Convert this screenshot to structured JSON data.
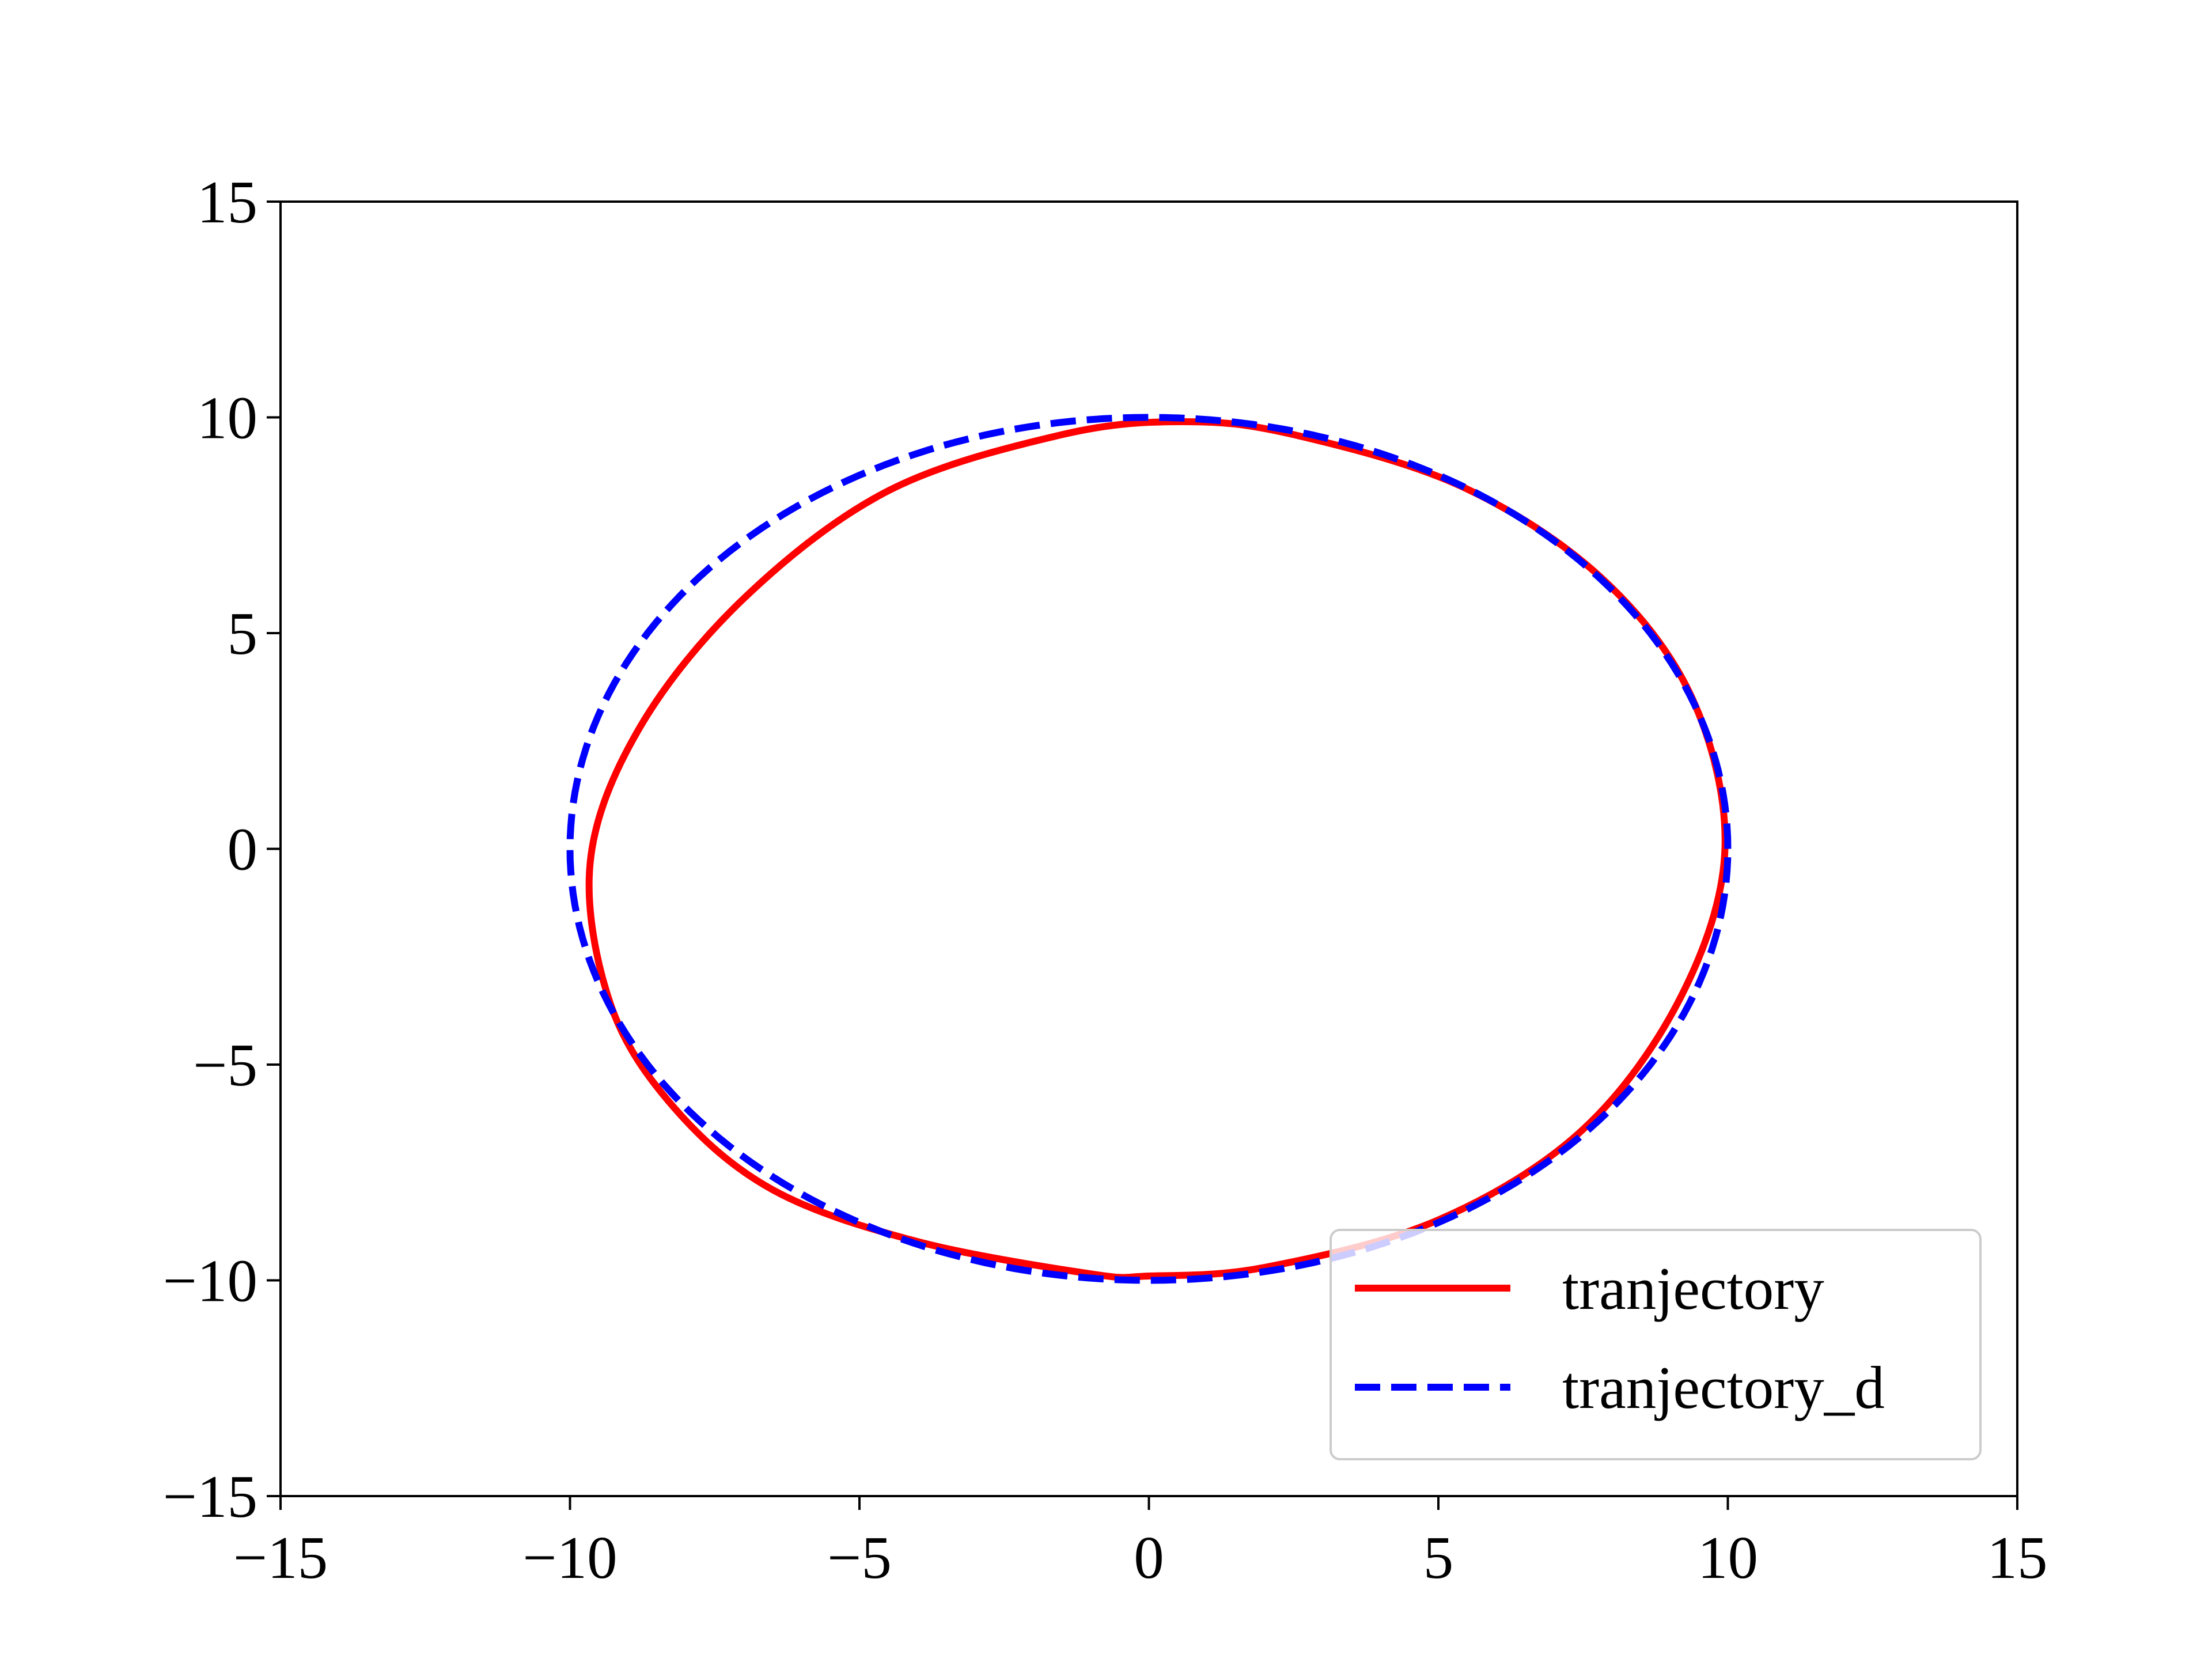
{
  "chart_data": {
    "type": "line",
    "title": "",
    "xlabel": "",
    "ylabel": "",
    "xlim": [
      -15,
      15
    ],
    "ylim": [
      -15,
      15
    ],
    "xticks": [
      -15,
      -10,
      -5,
      0,
      5,
      10,
      15
    ],
    "yticks": [
      -15,
      -10,
      -5,
      0,
      5,
      10,
      15
    ],
    "xtick_labels": [
      "−15",
      "−10",
      "−5",
      "0",
      "5",
      "10",
      "15"
    ],
    "ytick_labels": [
      "−15",
      "−10",
      "−5",
      "0",
      "5",
      "10",
      "15"
    ],
    "grid": false,
    "legend_position": "lower-right",
    "series": [
      {
        "name": "tranjectory",
        "color": "#ff0000",
        "style": "solid",
        "x": [
          9.95,
          9.38,
          7.8,
          5.4,
          2.5,
          0.6,
          -1.5,
          -4.5,
          -7.0,
          -8.8,
          -9.65,
          -9.3,
          -8.2,
          -6.5,
          -4.0,
          -1.0,
          0.0,
          2.0,
          5.0,
          7.5,
          9.2,
          9.95
        ],
        "y": [
          0.0,
          3.5,
          6.3,
          8.4,
          9.6,
          9.9,
          9.6,
          8.3,
          5.8,
          2.8,
          -0.3,
          -3.6,
          -6.0,
          -7.9,
          -9.1,
          -9.85,
          -9.9,
          -9.7,
          -8.6,
          -6.5,
          -3.4,
          0.0
        ]
      },
      {
        "name": "tranjectory_d",
        "color": "#0000ff",
        "style": "dashed",
        "shape": "circle",
        "center": [
          0,
          0
        ],
        "radius": 10
      }
    ]
  }
}
